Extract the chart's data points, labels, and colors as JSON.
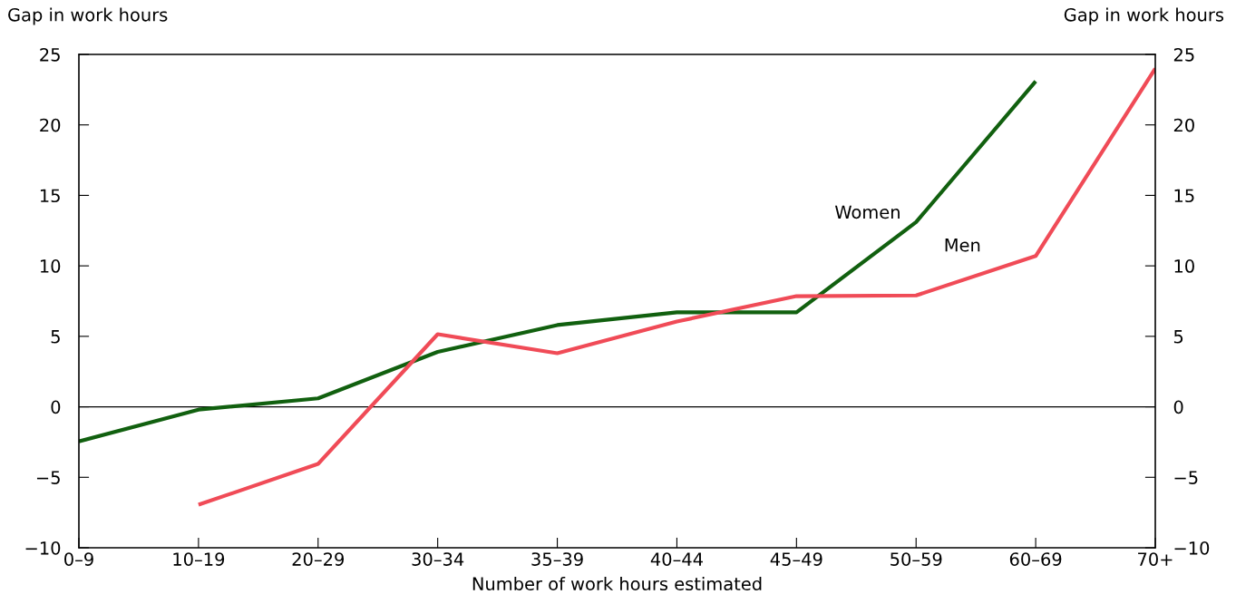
{
  "chart_data": {
    "type": "line",
    "ylabel": "Gap in work hours",
    "y2label": "Gap in work hours",
    "xlabel": "Number of work hours estimated",
    "categories": [
      "0–9",
      "10–19",
      "20–29",
      "30–34",
      "35–39",
      "40–44",
      "45–49",
      "50–59",
      "60–69",
      "70+"
    ],
    "series": [
      {
        "name": "Women",
        "color": "#11600f",
        "values": [
          -2.45,
          -0.2,
          0.6,
          3.9,
          5.8,
          6.7,
          6.7,
          13.1,
          23.1,
          null
        ]
      },
      {
        "name": "Men",
        "color": "#f04b57",
        "values": [
          null,
          -6.95,
          -4.05,
          5.15,
          3.8,
          6.05,
          7.85,
          7.9,
          10.7,
          24.0
        ]
      }
    ],
    "ylim": [
      -10,
      25
    ],
    "yticks": [
      {
        "value": -10,
        "label": "−10"
      },
      {
        "value": -5,
        "label": "−5"
      },
      0,
      5,
      10,
      15,
      20,
      25
    ],
    "y2lim": [
      -10,
      25
    ],
    "y2ticks": [
      {
        "value": -10,
        "label": "−10"
      },
      {
        "value": -5,
        "label": "−5"
      },
      0,
      5,
      10,
      15,
      20,
      25
    ],
    "ref_lines": [
      {
        "axis": "y",
        "value": 0,
        "color": "#000000"
      }
    ],
    "grid": false,
    "marker": "none",
    "line_style": "solid"
  }
}
